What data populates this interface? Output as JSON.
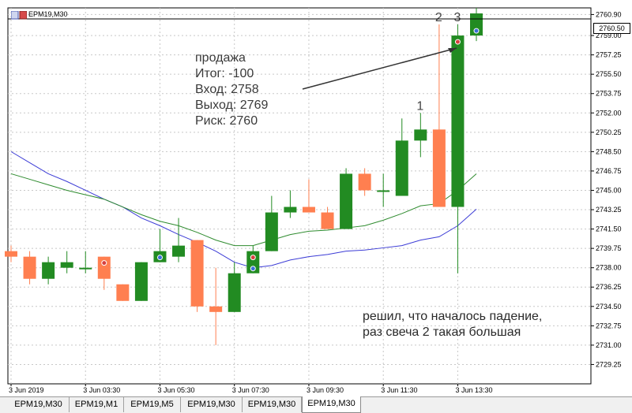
{
  "window": {
    "symbol_title": "EPM19,M30",
    "current_price": "2760.50"
  },
  "colors": {
    "bull": "#228b22",
    "bear": "#ff7f50",
    "ma_fast": "#2e8b2e",
    "ma_slow": "#3c3cd6",
    "grid": "#c8c8c8",
    "annotation_arrow": "#333333"
  },
  "annotations": {
    "note": [
      "продажа",
      "Итог: -100",
      "Вход: 2758",
      "Выход: 2769",
      "Риск: 2760"
    ],
    "comment": [
      "решил, что началось падение,",
      "раз свеча 2 такая большая"
    ],
    "candle_labels": [
      {
        "text": "1",
        "candle": 22
      },
      {
        "text": "2",
        "candle": 23
      },
      {
        "text": "3",
        "candle": 24
      }
    ]
  },
  "chart_data": {
    "type": "candlestick",
    "y_ticks": [
      "2760.90",
      "2759.00",
      "2757.25",
      "2755.50",
      "2753.75",
      "2752.00",
      "2750.25",
      "2748.50",
      "2746.75",
      "2745.00",
      "2743.25",
      "2741.50",
      "2739.75",
      "2738.00",
      "2736.25",
      "2734.50",
      "2732.75",
      "2731.00",
      "2729.25"
    ],
    "x_ticks": [
      "3 Jun 2019",
      "3 Jun 03:30",
      "3 Jun 05:30",
      "3 Jun 07:30",
      "3 Jun 09:30",
      "3 Jun 11:30",
      "3 Jun 13:30"
    ],
    "ylim": [
      2727.5,
      2761.5
    ],
    "candles": [
      {
        "o": 2739.5,
        "h": 2740.0,
        "l": 2738.5,
        "c": 2739.0
      },
      {
        "o": 2739.0,
        "h": 2739.5,
        "l": 2736.5,
        "c": 2737.0
      },
      {
        "o": 2737.0,
        "h": 2739.0,
        "l": 2736.5,
        "c": 2738.5
      },
      {
        "o": 2738.0,
        "h": 2739.5,
        "l": 2737.5,
        "c": 2738.5
      },
      {
        "o": 2738.0,
        "h": 2739.5,
        "l": 2737.5,
        "c": 2738.0
      },
      {
        "o": 2739.0,
        "h": 2739.0,
        "l": 2736.0,
        "c": 2737.0
      },
      {
        "o": 2736.5,
        "h": 2736.5,
        "l": 2735.0,
        "c": 2735.0
      },
      {
        "o": 2735.0,
        "h": 2738.5,
        "l": 2735.0,
        "c": 2738.5
      },
      {
        "o": 2738.5,
        "h": 2741.5,
        "l": 2738.5,
        "c": 2739.5
      },
      {
        "o": 2739.0,
        "h": 2742.5,
        "l": 2738.5,
        "c": 2740.0
      },
      {
        "o": 2740.5,
        "h": 2740.5,
        "l": 2734.0,
        "c": 2734.5
      },
      {
        "o": 2734.5,
        "h": 2738.0,
        "l": 2731.0,
        "c": 2734.0
      },
      {
        "o": 2734.0,
        "h": 2738.5,
        "l": 2734.0,
        "c": 2737.5
      },
      {
        "o": 2737.5,
        "h": 2740.0,
        "l": 2737.5,
        "c": 2739.5
      },
      {
        "o": 2739.5,
        "h": 2744.5,
        "l": 2739.5,
        "c": 2743.0
      },
      {
        "o": 2743.0,
        "h": 2745.0,
        "l": 2742.5,
        "c": 2743.5
      },
      {
        "o": 2743.5,
        "h": 2746.0,
        "l": 2743.0,
        "c": 2743.0
      },
      {
        "o": 2743.0,
        "h": 2743.5,
        "l": 2741.5,
        "c": 2741.5
      },
      {
        "o": 2741.5,
        "h": 2747.0,
        "l": 2741.5,
        "c": 2746.5
      },
      {
        "o": 2746.5,
        "h": 2747.0,
        "l": 2744.5,
        "c": 2745.0
      },
      {
        "o": 2745.0,
        "h": 2746.5,
        "l": 2743.5,
        "c": 2745.0
      },
      {
        "o": 2744.5,
        "h": 2751.5,
        "l": 2744.5,
        "c": 2749.5
      },
      {
        "o": 2749.5,
        "h": 2752.0,
        "l": 2748.0,
        "c": 2750.5
      },
      {
        "o": 2750.5,
        "h": 2760.0,
        "l": 2743.5,
        "c": 2743.5
      },
      {
        "o": 2743.5,
        "h": 2760.0,
        "l": 2737.5,
        "c": 2759.0
      },
      {
        "o": 2759.0,
        "h": 2761.5,
        "l": 2758.5,
        "c": 2761.0
      }
    ],
    "series": [
      {
        "values": [
          2748.5,
          2747.5,
          2746.5,
          2745.8,
          2745.0,
          2744.2,
          2743.5,
          2742.5,
          2741.8,
          2741.0,
          2740.3,
          2739.5,
          2738.5,
          2738.0,
          2738.2,
          2738.7,
          2739.0,
          2739.2,
          2739.5,
          2739.6,
          2739.8,
          2740.0,
          2740.5,
          2740.8,
          2741.8,
          2743.3
        ]
      },
      {
        "values": [
          2746.5,
          2746.0,
          2745.5,
          2745.0,
          2744.6,
          2744.2,
          2743.5,
          2742.8,
          2742.2,
          2741.8,
          2741.2,
          2740.5,
          2740.0,
          2740.0,
          2740.5,
          2741.0,
          2741.3,
          2741.4,
          2741.6,
          2741.8,
          2742.3,
          2742.9,
          2743.6,
          2743.8,
          2745.0,
          2746.5
        ]
      }
    ]
  },
  "tabs": [
    {
      "label": "EPM19,M30",
      "active": false
    },
    {
      "label": "EPM19,M1",
      "active": false
    },
    {
      "label": "EPM19,M5",
      "active": false
    },
    {
      "label": "EPM19,M30",
      "active": false
    },
    {
      "label": "EPM19,M30",
      "active": false
    },
    {
      "label": "EPM19,M30",
      "active": true
    }
  ]
}
